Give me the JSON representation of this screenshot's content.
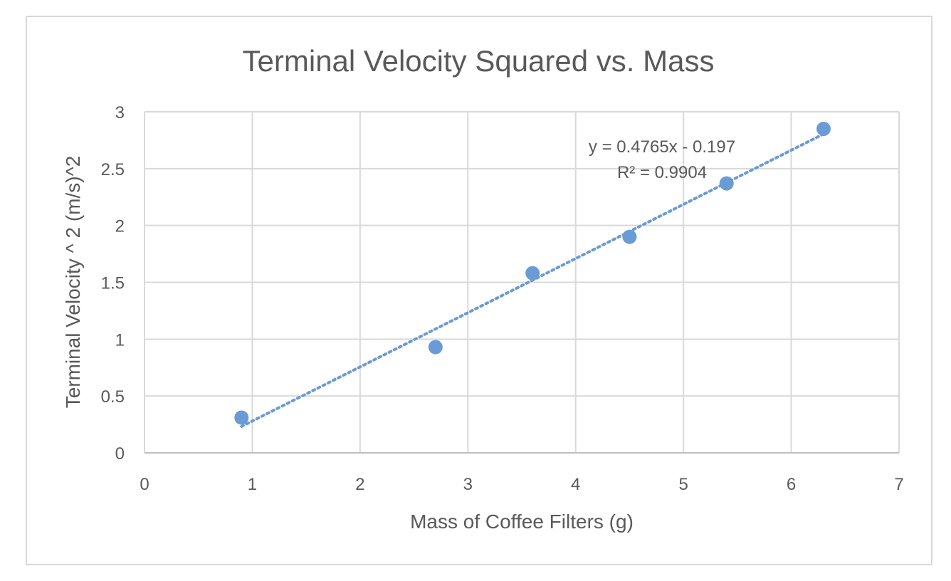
{
  "chart_data": {
    "type": "scatter",
    "title": "Terminal Velocity Squared vs. Mass",
    "xlabel": "Mass of Coffee Filters (g)",
    "ylabel": "Terminal Velocity ^ 2 (m/s)^2",
    "xlim": [
      0,
      7
    ],
    "ylim": [
      0,
      3
    ],
    "x_ticks": [
      "0",
      "1",
      "2",
      "3",
      "4",
      "5",
      "6",
      "7"
    ],
    "y_ticks": [
      "0",
      "0.5",
      "1",
      "1.5",
      "2",
      "2.5",
      "3"
    ],
    "grid": true,
    "series": [
      {
        "x": [
          0.9,
          2.7,
          3.6,
          4.5,
          5.4,
          6.3
        ],
        "y": [
          0.31,
          0.93,
          1.58,
          1.9,
          2.37,
          2.85
        ],
        "color": "#6a9bd4"
      }
    ],
    "trendline": {
      "type": "linear",
      "slope": 0.4765,
      "intercept": -0.197,
      "x_range": [
        0.9,
        6.3
      ],
      "style": "dotted",
      "color": "#6a9bd4",
      "equation": "y = 0.4765x - 0.197",
      "r_squared": "R² = 0.9904"
    }
  }
}
